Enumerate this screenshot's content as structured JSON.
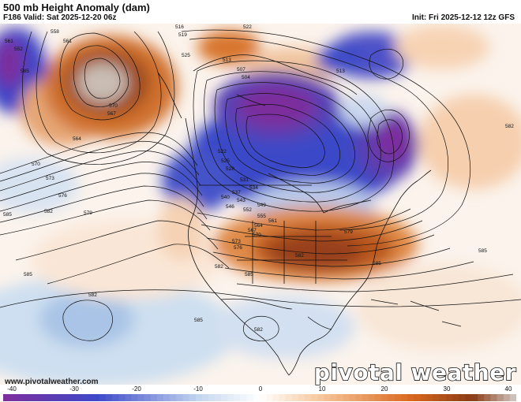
{
  "header": {
    "title": "500 mb Height Anomaly (dam)",
    "valid": "F186 Valid: Sat 2025-12-20 06z",
    "init": "Init: Fri 2025-12-12 12z GFS"
  },
  "footer": {
    "website": "www.pivotalweather.com",
    "brand": "pivotal weather"
  },
  "colorbar": {
    "min": -40,
    "max": 40,
    "tick_labels": [
      "-40",
      "-30",
      "-20",
      "-10",
      "0",
      "10",
      "20",
      "30",
      "40"
    ],
    "colors": {
      "neg_strong": "#7b2f9e",
      "neg_mid": "#3d49c9",
      "neg_weak": "#c4d6ef",
      "neutral": "#ffffff",
      "pos_weak": "#f6c79c",
      "pos_mid": "#d9681e",
      "pos_strong": "#8a3b16",
      "pos_max": "#ccc0b8"
    }
  },
  "contour_labels": [
    "561",
    "552",
    "585",
    "558",
    "561",
    "567",
    "570",
    "564",
    "570",
    "573",
    "576",
    "582",
    "585",
    "579",
    "516",
    "519",
    "522",
    "525",
    "513",
    "507",
    "504",
    "513",
    "522",
    "525",
    "528",
    "531",
    "534",
    "537",
    "540",
    "543",
    "546",
    "549",
    "552",
    "555",
    "561",
    "564",
    "567",
    "570",
    "573",
    "576",
    "579",
    "582",
    "585",
    "582",
    "585",
    "585",
    "582",
    "582",
    "585",
    "585",
    "582"
  ]
}
